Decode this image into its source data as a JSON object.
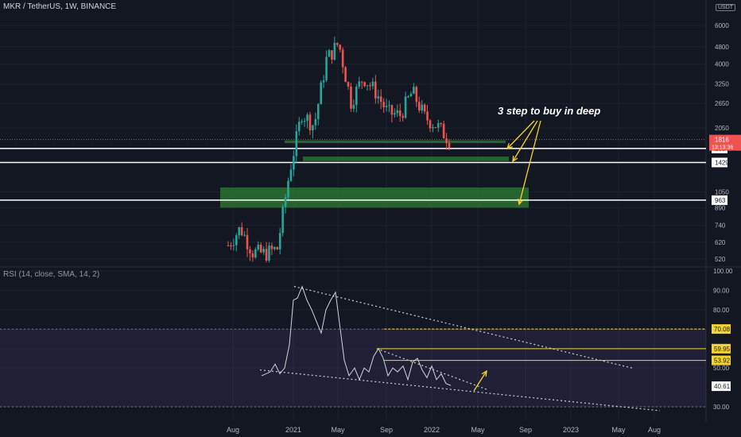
{
  "header": {
    "title": "MKR / TetherUS, 1W, BINANCE",
    "currency": "USDT"
  },
  "rsi_header": {
    "title": "RSI (14, close, SMA, 14, 2)"
  },
  "annotation": {
    "text": "3 step to buy in deep"
  },
  "price_badge": {
    "price": "1816",
    "countdown": "13:13:36"
  },
  "colors": {
    "up": "#26a69a",
    "down": "#ef5350",
    "zone": "#2e7d32",
    "rsi_line": "#d1d4dc",
    "rsi_band": "#7e57c2",
    "level": "#ffffff",
    "rsi_level": "#f6d32e",
    "arrow": "#f6d32e"
  },
  "chart_data": [
    {
      "type": "candlestick",
      "title": "MKR / TetherUS, 1W, BINANCE",
      "scale": "log",
      "x_ticks": [
        "Aug",
        "2021",
        "May",
        "Sep",
        "2022",
        "May",
        "Sep",
        "2023",
        "May",
        "Aug"
      ],
      "y_ticks": [
        6000,
        4800,
        4000,
        3250,
        2650,
        2050,
        1050,
        890,
        740,
        620,
        520
      ],
      "horizontal_levels": [
        1654,
        1429,
        963
      ],
      "support_zones": [
        [
          1750,
          1800
        ],
        [
          1450,
          1520
        ],
        [
          890,
          1100
        ]
      ],
      "last_price": 1816,
      "approx_close_path": [
        [
          "Aug",
          600
        ],
        [
          "Sep",
          720
        ],
        [
          "Oct",
          560
        ],
        [
          "Nov",
          550
        ],
        [
          "Dec",
          580
        ],
        [
          "2021",
          1300
        ],
        [
          "Feb",
          2400
        ],
        [
          "Mar",
          2100
        ],
        [
          "Apr",
          4200
        ],
        [
          "May",
          5000
        ],
        [
          "Jun",
          2700
        ],
        [
          "Jul",
          3500
        ],
        [
          "Aug",
          3000
        ],
        [
          "Sep",
          2400
        ],
        [
          "Oct",
          2350
        ],
        [
          "Nov",
          3000
        ],
        [
          "Dec",
          2300
        ],
        [
          "2022",
          2100
        ],
        [
          "Feb",
          1816
        ]
      ]
    },
    {
      "type": "line",
      "title": "RSI (14, close, SMA, 14, 2)",
      "y_ticks": [
        "100.00",
        "90.00",
        "80.00",
        "70.00",
        "60.00",
        "50.00",
        "30.00"
      ],
      "level_labels": [
        "70.08",
        "59.95",
        "53.92",
        "40.61"
      ],
      "ylim": [
        25,
        100
      ]
    }
  ]
}
